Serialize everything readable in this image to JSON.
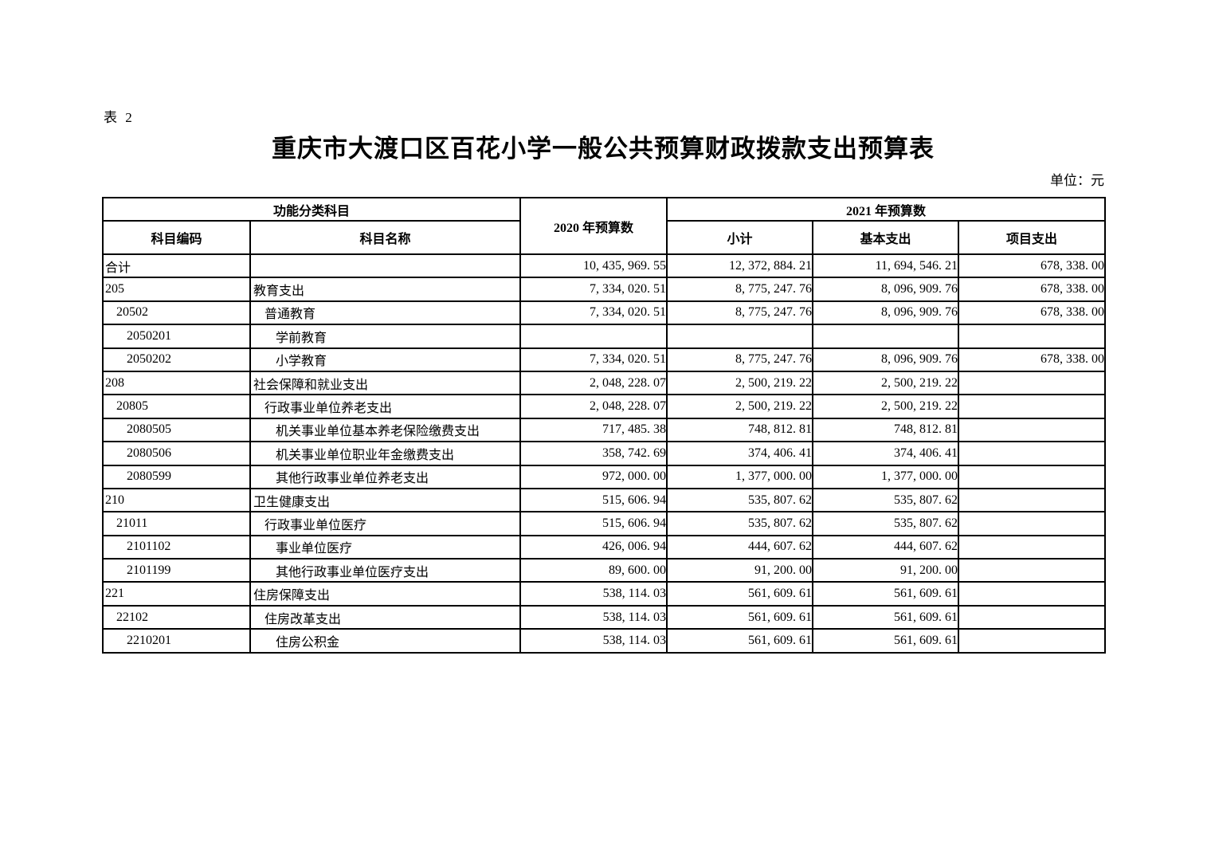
{
  "page": {
    "table_label": "表 2",
    "title": "重庆市大渡口区百花小学一般公共预算财政拨款支出预算表",
    "unit_note": "单位：元"
  },
  "table": {
    "header": {
      "func_group": "功能分类科目",
      "code": "科目编码",
      "name": "科目名称",
      "y2020": "2020 年预算数",
      "y2021": "2021 年预算数",
      "subtotal": "小计",
      "basic": "基本支出",
      "project": "项目支出"
    },
    "rows": [
      {
        "code": "合计",
        "name": "",
        "y2020": "10, 435, 969. 55",
        "subtotal": "12, 372, 884. 21",
        "basic": "11, 694, 546. 21",
        "project": "678, 338. 00",
        "level": 0
      },
      {
        "code": "205",
        "name": "教育支出",
        "y2020": "7, 334, 020. 51",
        "subtotal": "8, 775, 247. 76",
        "basic": "8, 096, 909. 76",
        "project": "678, 338. 00",
        "level": 0
      },
      {
        "code": "20502",
        "name": "普通教育",
        "y2020": "7, 334, 020. 51",
        "subtotal": "8, 775, 247. 76",
        "basic": "8, 096, 909. 76",
        "project": "678, 338. 00",
        "level": 1
      },
      {
        "code": "2050201",
        "name": "学前教育",
        "y2020": "",
        "subtotal": "",
        "basic": "",
        "project": "",
        "level": 2
      },
      {
        "code": "2050202",
        "name": "小学教育",
        "y2020": "7, 334, 020. 51",
        "subtotal": "8, 775, 247. 76",
        "basic": "8, 096, 909. 76",
        "project": "678, 338. 00",
        "level": 2
      },
      {
        "code": "208",
        "name": "社会保障和就业支出",
        "y2020": "2, 048, 228. 07",
        "subtotal": "2, 500, 219. 22",
        "basic": "2, 500, 219. 22",
        "project": "",
        "level": 0
      },
      {
        "code": "20805",
        "name": "行政事业单位养老支出",
        "y2020": "2, 048, 228. 07",
        "subtotal": "2, 500, 219. 22",
        "basic": "2, 500, 219. 22",
        "project": "",
        "level": 1
      },
      {
        "code": "2080505",
        "name": "机关事业单位基本养老保险缴费支出",
        "y2020": "717, 485. 38",
        "subtotal": "748, 812. 81",
        "basic": "748, 812. 81",
        "project": "",
        "level": 2
      },
      {
        "code": "2080506",
        "name": "机关事业单位职业年金缴费支出",
        "y2020": "358, 742. 69",
        "subtotal": "374, 406. 41",
        "basic": "374, 406. 41",
        "project": "",
        "level": 2
      },
      {
        "code": "2080599",
        "name": "其他行政事业单位养老支出",
        "y2020": "972, 000. 00",
        "subtotal": "1, 377, 000. 00",
        "basic": "1, 377, 000. 00",
        "project": "",
        "level": 2
      },
      {
        "code": "210",
        "name": "卫生健康支出",
        "y2020": "515, 606. 94",
        "subtotal": "535, 807. 62",
        "basic": "535, 807. 62",
        "project": "",
        "level": 0
      },
      {
        "code": "21011",
        "name": "行政事业单位医疗",
        "y2020": "515, 606. 94",
        "subtotal": "535, 807. 62",
        "basic": "535, 807. 62",
        "project": "",
        "level": 1
      },
      {
        "code": "2101102",
        "name": "事业单位医疗",
        "y2020": "426, 006. 94",
        "subtotal": "444, 607. 62",
        "basic": "444, 607. 62",
        "project": "",
        "level": 2
      },
      {
        "code": "2101199",
        "name": "其他行政事业单位医疗支出",
        "y2020": "89, 600. 00",
        "subtotal": "91, 200. 00",
        "basic": "91, 200. 00",
        "project": "",
        "level": 2
      },
      {
        "code": "221",
        "name": "住房保障支出",
        "y2020": "538, 114. 03",
        "subtotal": "561, 609. 61",
        "basic": "561, 609. 61",
        "project": "",
        "level": 0
      },
      {
        "code": "22102",
        "name": "住房改革支出",
        "y2020": "538, 114. 03",
        "subtotal": "561, 609. 61",
        "basic": "561, 609. 61",
        "project": "",
        "level": 1
      },
      {
        "code": "2210201",
        "name": "住房公积金",
        "y2020": "538, 114. 03",
        "subtotal": "561, 609. 61",
        "basic": "561, 609. 61",
        "project": "",
        "level": 2
      }
    ]
  }
}
